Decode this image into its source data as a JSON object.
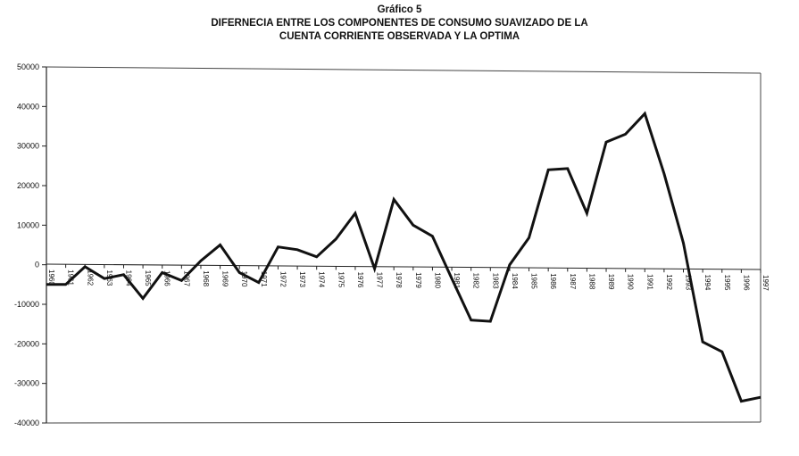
{
  "chart_data": {
    "type": "line",
    "title": "Gráfico 5",
    "subtitle_lines": [
      "DIFERNECIA ENTRE LOS COMPONENTES DE CONSUMO SUAVIZADO DE LA",
      "CUENTA CORRIENTE OBSERVADA Y LA OPTIMA"
    ],
    "xlabel": "",
    "ylabel": "",
    "ylim": [
      -40000,
      50000
    ],
    "y_ticks": [
      50000,
      40000,
      30000,
      20000,
      10000,
      0,
      -10000,
      -20000,
      -30000,
      -40000
    ],
    "grid": false,
    "legend": "none",
    "line_color": "#111111",
    "categories": [
      "1960",
      "1961",
      "1962",
      "1963",
      "1964",
      "1965",
      "1966",
      "1967",
      "1968",
      "1969",
      "1970",
      "1971",
      "1972",
      "1973",
      "1974",
      "1975",
      "1976",
      "1977",
      "1978",
      "1979",
      "1980",
      "1981",
      "1982",
      "1983",
      "1984",
      "1985",
      "1986",
      "1987",
      "1988",
      "1989",
      "1990",
      "1991",
      "1992",
      "1993",
      "1994",
      "1995",
      "1996",
      "1997"
    ],
    "x_tick_labels": [
      "1960",
      "1961",
      "1962",
      "1963",
      "1964",
      "1965",
      "1966",
      "1967",
      "1968",
      "1969",
      "1970",
      "1971",
      "1972",
      "1973",
      "1974",
      "1975",
      "1976",
      "1977",
      "1978",
      "1979",
      "1980",
      "1981",
      "1982",
      "1983",
      "1984",
      "1985",
      "1986",
      "1987",
      "1988",
      "1989",
      "1990",
      "1991",
      "1992",
      "1993",
      "1994",
      "1995",
      "1996",
      "1997"
    ],
    "values": [
      -5000,
      -5000,
      -500,
      -3500,
      -2500,
      -8500,
      -2000,
      -4000,
      1000,
      5000,
      -2000,
      -4500,
      4500,
      3800,
      2000,
      6500,
      13000,
      -1000,
      16500,
      10000,
      7200,
      -3500,
      -14000,
      -14300,
      0,
      6800,
      24000,
      24300,
      13000,
      31000,
      33000,
      38200,
      23000,
      5500,
      -19500,
      -22000,
      -34500,
      -33500
    ]
  }
}
